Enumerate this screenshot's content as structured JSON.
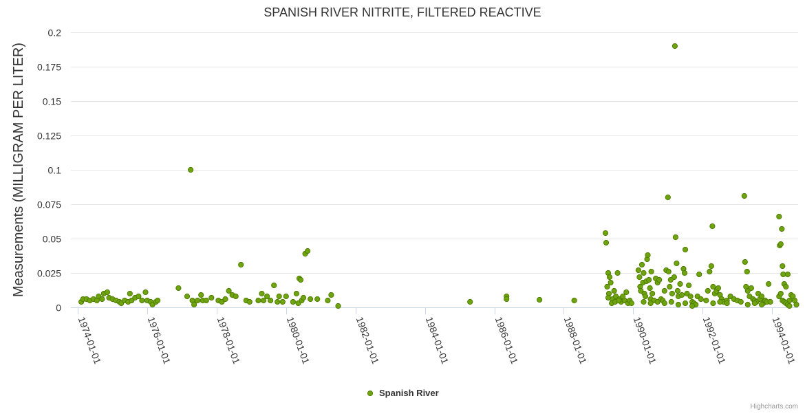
{
  "chart_data": {
    "type": "scatter",
    "title": "SPANISH RIVER NITRITE, FILTERED REACTIVE",
    "ylabel": "Measurements (MILLIGRAM PER LITER)",
    "xlabel": "",
    "ylim": [
      0,
      0.2
    ],
    "yticks": [
      0,
      0.025,
      0.05,
      0.075,
      0.1,
      0.125,
      0.15,
      0.175,
      0.2
    ],
    "yticklabels": [
      "0",
      "0.025",
      "0.05",
      "0.075",
      "0.1",
      "0.125",
      "0.15",
      "0.175",
      "0.2"
    ],
    "xlim": [
      1973.8,
      1994.75
    ],
    "xticks": [
      1974,
      1976,
      1978,
      1980,
      1982,
      1984,
      1986,
      1988,
      1990,
      1992,
      1994
    ],
    "xticklabels": [
      "1974-01-01",
      "1976-01-01",
      "1978-01-01",
      "1980-01-01",
      "1982-01-01",
      "1984-01-01",
      "1986-01-01",
      "1988-01-01",
      "1990-01-01",
      "1992-01-01",
      "1994-01-01"
    ],
    "grid": "horizontal",
    "legend_position": "bottom-center",
    "color": "#6fa30f",
    "series": [
      {
        "name": "Spanish River",
        "points": [
          [
            1974.1,
            0.004
          ],
          [
            1974.15,
            0.006
          ],
          [
            1974.25,
            0.006
          ],
          [
            1974.35,
            0.005
          ],
          [
            1974.45,
            0.006
          ],
          [
            1974.55,
            0.005
          ],
          [
            1974.6,
            0.008
          ],
          [
            1974.7,
            0.006
          ],
          [
            1974.75,
            0.01
          ],
          [
            1974.85,
            0.011
          ],
          [
            1974.9,
            0.007
          ],
          [
            1975.0,
            0.006
          ],
          [
            1975.1,
            0.005
          ],
          [
            1975.2,
            0.004
          ],
          [
            1975.25,
            0.003
          ],
          [
            1975.35,
            0.005
          ],
          [
            1975.45,
            0.004
          ],
          [
            1975.5,
            0.01
          ],
          [
            1975.55,
            0.005
          ],
          [
            1975.65,
            0.007
          ],
          [
            1975.75,
            0.008
          ],
          [
            1975.85,
            0.005
          ],
          [
            1975.95,
            0.011
          ],
          [
            1976.0,
            0.005
          ],
          [
            1976.1,
            0.004
          ],
          [
            1976.15,
            0.002
          ],
          [
            1976.25,
            0.004
          ],
          [
            1976.3,
            0.005
          ],
          [
            1976.9,
            0.014
          ],
          [
            1977.15,
            0.008
          ],
          [
            1977.25,
            0.1
          ],
          [
            1977.3,
            0.005
          ],
          [
            1977.35,
            0.002
          ],
          [
            1977.45,
            0.005
          ],
          [
            1977.55,
            0.009
          ],
          [
            1977.6,
            0.005
          ],
          [
            1977.7,
            0.005
          ],
          [
            1977.85,
            0.007
          ],
          [
            1978.05,
            0.005
          ],
          [
            1978.15,
            0.004
          ],
          [
            1978.25,
            0.006
          ],
          [
            1978.35,
            0.012
          ],
          [
            1978.45,
            0.009
          ],
          [
            1978.55,
            0.008
          ],
          [
            1978.7,
            0.031
          ],
          [
            1978.85,
            0.005
          ],
          [
            1978.95,
            0.004
          ],
          [
            1979.2,
            0.005
          ],
          [
            1979.3,
            0.01
          ],
          [
            1979.35,
            0.005
          ],
          [
            1979.45,
            0.008
          ],
          [
            1979.55,
            0.005
          ],
          [
            1979.65,
            0.016
          ],
          [
            1979.75,
            0.004
          ],
          [
            1979.8,
            0.008
          ],
          [
            1979.9,
            0.004
          ],
          [
            1980.0,
            0.008
          ],
          [
            1980.2,
            0.004
          ],
          [
            1980.3,
            0.01
          ],
          [
            1980.35,
            0.003
          ],
          [
            1980.38,
            0.021
          ],
          [
            1980.42,
            0.02
          ],
          [
            1980.45,
            0.005
          ],
          [
            1980.5,
            0.007
          ],
          [
            1980.55,
            0.039
          ],
          [
            1980.62,
            0.041
          ],
          [
            1980.7,
            0.006
          ],
          [
            1980.9,
            0.006
          ],
          [
            1981.2,
            0.005
          ],
          [
            1981.3,
            0.009
          ],
          [
            1981.5,
            0.001
          ],
          [
            1985.3,
            0.004
          ],
          [
            1986.35,
            0.008
          ],
          [
            1986.35,
            0.006
          ],
          [
            1987.3,
            0.0055
          ],
          [
            1988.3,
            0.005
          ],
          [
            1989.2,
            0.054
          ],
          [
            1989.22,
            0.047
          ],
          [
            1989.25,
            0.015
          ],
          [
            1989.28,
            0.025
          ],
          [
            1989.3,
            0.01
          ],
          [
            1989.32,
            0.022
          ],
          [
            1989.35,
            0.018
          ],
          [
            1989.4,
            0.006
          ],
          [
            1989.45,
            0.012
          ],
          [
            1989.5,
            0.008
          ],
          [
            1989.55,
            0.025
          ],
          [
            1989.6,
            0.006
          ],
          [
            1989.65,
            0.004
          ],
          [
            1989.7,
            0.008
          ],
          [
            1989.75,
            0.005
          ],
          [
            1989.8,
            0.011
          ],
          [
            1989.85,
            0.003
          ],
          [
            1989.9,
            0.005
          ],
          [
            1989.95,
            0.003
          ],
          [
            1989.28,
            0.007
          ],
          [
            1989.38,
            0.003
          ],
          [
            1989.48,
            0.004
          ],
          [
            1989.58,
            0.005
          ],
          [
            1990.15,
            0.027
          ],
          [
            1990.18,
            0.022
          ],
          [
            1990.2,
            0.015
          ],
          [
            1990.22,
            0.012
          ],
          [
            1990.25,
            0.031
          ],
          [
            1990.28,
            0.018
          ],
          [
            1990.3,
            0.025
          ],
          [
            1990.32,
            0.01
          ],
          [
            1990.35,
            0.008
          ],
          [
            1990.38,
            0.019
          ],
          [
            1990.4,
            0.035
          ],
          [
            1990.42,
            0.038
          ],
          [
            1990.45,
            0.02
          ],
          [
            1990.48,
            0.014
          ],
          [
            1990.5,
            0.006
          ],
          [
            1990.52,
            0.026
          ],
          [
            1990.55,
            0.01
          ],
          [
            1990.6,
            0.005
          ],
          [
            1990.65,
            0.021
          ],
          [
            1990.7,
            0.018
          ],
          [
            1990.75,
            0.02
          ],
          [
            1990.8,
            0.006
          ],
          [
            1990.85,
            0.005
          ],
          [
            1990.9,
            0.012
          ],
          [
            1990.95,
            0.027
          ],
          [
            1991.0,
            0.08
          ],
          [
            1991.02,
            0.026
          ],
          [
            1991.05,
            0.015
          ],
          [
            1991.08,
            0.02
          ],
          [
            1991.12,
            0.01
          ],
          [
            1991.18,
            0.022
          ],
          [
            1991.2,
            0.19
          ],
          [
            1991.22,
            0.051
          ],
          [
            1991.25,
            0.032
          ],
          [
            1991.28,
            0.012
          ],
          [
            1991.3,
            0.008
          ],
          [
            1991.35,
            0.017
          ],
          [
            1991.4,
            0.009
          ],
          [
            1991.45,
            0.028
          ],
          [
            1991.48,
            0.025
          ],
          [
            1991.5,
            0.042
          ],
          [
            1991.55,
            0.01
          ],
          [
            1991.6,
            0.016
          ],
          [
            1991.65,
            0.008
          ],
          [
            1991.7,
            0.004
          ],
          [
            1991.75,
            0.003
          ],
          [
            1991.8,
            0.002
          ],
          [
            1991.85,
            0.008
          ],
          [
            1991.9,
            0.024
          ],
          [
            1991.95,
            0.006
          ],
          [
            1990.3,
            0.004
          ],
          [
            1990.5,
            0.003
          ],
          [
            1990.7,
            0.004
          ],
          [
            1990.9,
            0.003
          ],
          [
            1991.1,
            0.004
          ],
          [
            1991.3,
            0.002
          ],
          [
            1991.5,
            0.003
          ],
          [
            1991.7,
            0.001
          ],
          [
            1992.1,
            0.005
          ],
          [
            1992.15,
            0.012
          ],
          [
            1992.2,
            0.026
          ],
          [
            1992.25,
            0.03
          ],
          [
            1992.28,
            0.059
          ],
          [
            1992.3,
            0.015
          ],
          [
            1992.35,
            0.01
          ],
          [
            1992.4,
            0.012
          ],
          [
            1992.45,
            0.014
          ],
          [
            1992.5,
            0.009
          ],
          [
            1992.55,
            0.006
          ],
          [
            1992.6,
            0.004
          ],
          [
            1992.7,
            0.005
          ],
          [
            1992.8,
            0.008
          ],
          [
            1992.9,
            0.006
          ],
          [
            1993.0,
            0.005
          ],
          [
            1993.1,
            0.004
          ],
          [
            1993.2,
            0.081
          ],
          [
            1993.22,
            0.033
          ],
          [
            1993.25,
            0.015
          ],
          [
            1993.28,
            0.026
          ],
          [
            1993.3,
            0.012
          ],
          [
            1993.35,
            0.008
          ],
          [
            1993.4,
            0.014
          ],
          [
            1993.45,
            0.006
          ],
          [
            1993.5,
            0.005
          ],
          [
            1993.55,
            0.004
          ],
          [
            1993.6,
            0.01
          ],
          [
            1993.65,
            0.006
          ],
          [
            1993.7,
            0.008
          ],
          [
            1993.75,
            0.003
          ],
          [
            1993.8,
            0.005
          ],
          [
            1993.85,
            0.004
          ],
          [
            1993.9,
            0.017
          ],
          [
            1993.95,
            0.004
          ],
          [
            1992.3,
            0.003
          ],
          [
            1992.5,
            0.004
          ],
          [
            1992.7,
            0.003
          ],
          [
            1993.3,
            0.002
          ],
          [
            1993.5,
            0.003
          ],
          [
            1993.7,
            0.002
          ],
          [
            1994.2,
            0.066
          ],
          [
            1994.22,
            0.045
          ],
          [
            1994.25,
            0.046
          ],
          [
            1994.28,
            0.057
          ],
          [
            1994.3,
            0.03
          ],
          [
            1994.32,
            0.024
          ],
          [
            1994.35,
            0.017
          ],
          [
            1994.4,
            0.015
          ],
          [
            1994.45,
            0.024
          ],
          [
            1994.5,
            0.005
          ],
          [
            1994.55,
            0.009
          ],
          [
            1994.6,
            0.008
          ],
          [
            1994.65,
            0.005
          ],
          [
            1994.7,
            0.002
          ],
          [
            1994.2,
            0.008
          ],
          [
            1994.25,
            0.01
          ],
          [
            1994.3,
            0.005
          ],
          [
            1994.35,
            0.004
          ],
          [
            1994.4,
            0.003
          ],
          [
            1994.45,
            0.002
          ],
          [
            1994.5,
            0.001
          ]
        ]
      }
    ],
    "credits": "Highcharts.com"
  }
}
